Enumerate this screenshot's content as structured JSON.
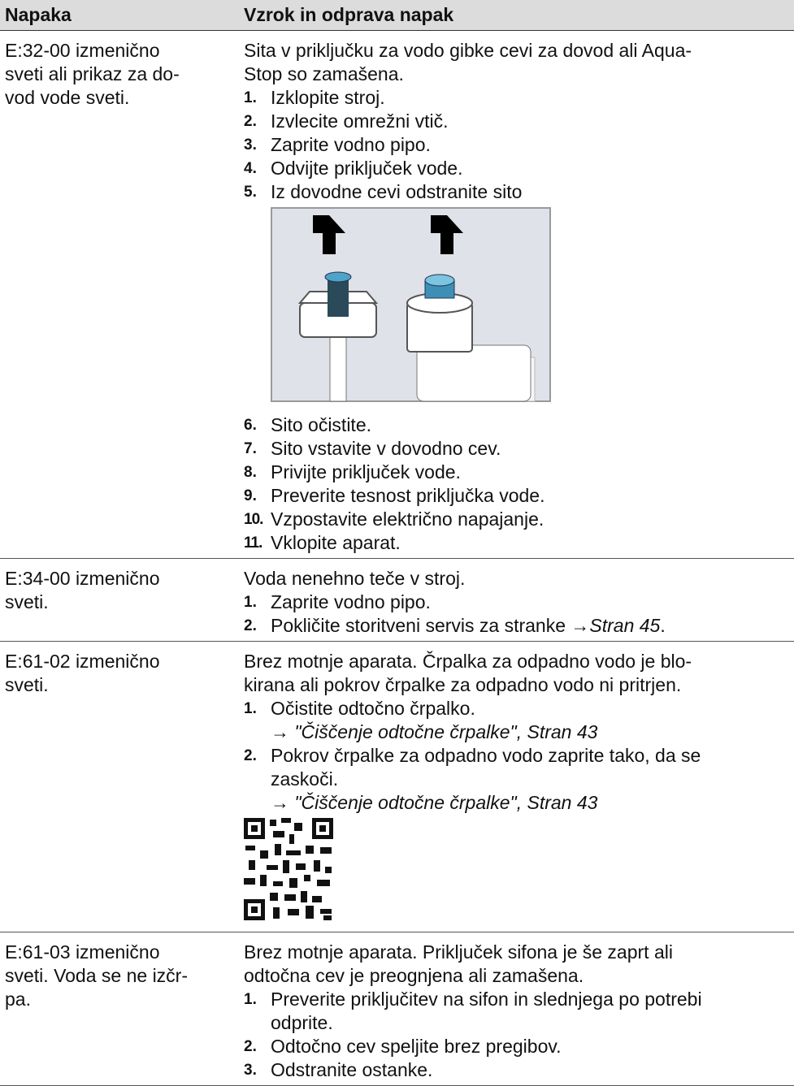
{
  "table": {
    "header": [
      "Napaka",
      "Vzrok in odprava napak"
    ],
    "rows": [
      {
        "fault": [
          "E:32-00 izmenično",
          "sveti ali prikaz za do-",
          "vod vode sveti."
        ],
        "intro": [
          "Sita v priključku za vodo gibke cevi za dovod ali Aqua-",
          "Stop so zamašena."
        ],
        "steps": [
          {
            "number": "1.",
            "lines": [
              "Izklopite stroj."
            ]
          },
          {
            "number": "2.",
            "lines": [
              "Izvlecite omrežni vtič."
            ]
          },
          {
            "number": "3.",
            "lines": [
              "Zaprite vodno pipo."
            ]
          },
          {
            "number": "4.",
            "lines": [
              "Odvijte priključek vode."
            ]
          },
          {
            "number": "5.",
            "lines": [
              "Iz dovodne cevi odstranite sito"
            ]
          },
          {
            "number": "6.",
            "lines": [
              "Sito očistite."
            ]
          },
          {
            "number": "7.",
            "lines": [
              "Sito vstavite v dovodno cev."
            ]
          },
          {
            "number": "8.",
            "lines": [
              "Privijte priključek vode."
            ]
          },
          {
            "number": "9.",
            "lines": [
              "Preverite tesnost priključka vode."
            ]
          },
          {
            "number": "10.",
            "lines": [
              "Vzpostavite električno napajanje."
            ]
          },
          {
            "number": "11.",
            "lines": [
              "Vklopite aparat."
            ]
          }
        ]
      },
      {
        "fault": [
          "E:34-00 izmenično",
          "sveti."
        ],
        "intro": [
          "Voda nenehno teče v stroj."
        ],
        "steps": [
          {
            "number": "1.",
            "lines": [
              "Zaprite vodno pipo."
            ]
          },
          {
            "number": "2.",
            "lines": [
              "Pokličite storitveni servis za stranke"
            ],
            "link": {
              "arrow": "→",
              "text": "Stran 45",
              "suffix": "."
            }
          }
        ]
      },
      {
        "fault": [
          "E:61-02 izmenično",
          "sveti."
        ],
        "intro": [
          "Brez motnje aparata. Črpalka za odpadno vodo je blo-",
          "kirana ali pokrov črpalke za odpadno vodo ni pritrjen."
        ],
        "steps": [
          {
            "number": "1.",
            "lines": [
              "Očistite odtočno črpalko."
            ],
            "refs": [
              "→ \"Čiščenje odtočne črpalke\", Stran 43"
            ]
          },
          {
            "number": "2.",
            "lines": [
              "Pokrov črpalke za odpadno vodo zaprite tako, da se",
              "zaskoči."
            ],
            "refs": [
              "→ \"Čiščenje odtočne črpalke\", Stran 43"
            ]
          }
        ]
      },
      {
        "fault": [
          "E:61-03 izmenično",
          "sveti. Voda se ne izčr-",
          "pa."
        ],
        "intro": [
          "Brez motnje aparata. Priključek sifona je še zaprt ali",
          "odtočna cev je preognjena ali zamašena."
        ],
        "steps": [
          {
            "number": "1.",
            "lines": [
              "Preverite priključitev na sifon in slednjega po potrebi",
              "odprite."
            ]
          },
          {
            "number": "2.",
            "lines": [
              "Odtočno cev speljite brez pregibov."
            ]
          },
          {
            "number": "3.",
            "lines": [
              "Odstranite ostanke."
            ]
          }
        ]
      }
    ]
  }
}
